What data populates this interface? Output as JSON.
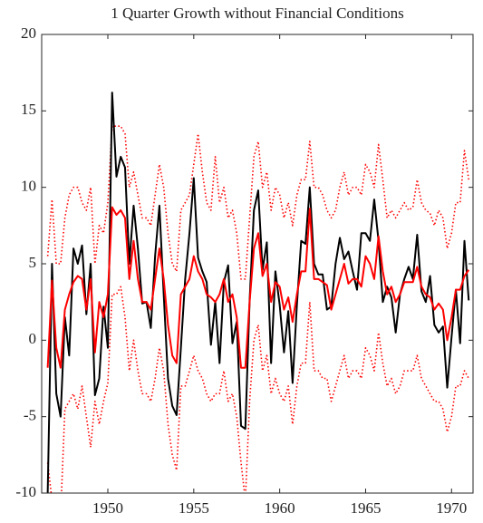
{
  "chart_data": {
    "type": "line",
    "title": "1 Quarter Growth without Financial Conditions",
    "x": [
      1946.5,
      1946.75,
      1947,
      1947.25,
      1947.5,
      1947.75,
      1948,
      1948.25,
      1948.5,
      1948.75,
      1949,
      1949.25,
      1949.5,
      1949.75,
      1950,
      1950.25,
      1950.5,
      1950.75,
      1951,
      1951.25,
      1951.5,
      1951.75,
      1952,
      1952.25,
      1952.5,
      1952.75,
      1953,
      1953.25,
      1953.5,
      1953.75,
      1954,
      1954.25,
      1954.5,
      1954.75,
      1955,
      1955.25,
      1955.5,
      1955.75,
      1956,
      1956.25,
      1956.5,
      1956.75,
      1957,
      1957.25,
      1957.5,
      1957.75,
      1958,
      1958.25,
      1958.5,
      1958.75,
      1959,
      1959.25,
      1959.5,
      1959.75,
      1960,
      1960.25,
      1960.5,
      1960.75,
      1961,
      1961.25,
      1961.5,
      1961.75,
      1962,
      1962.25,
      1962.5,
      1962.75,
      1963,
      1963.25,
      1963.5,
      1963.75,
      1964,
      1964.25,
      1964.5,
      1964.75,
      1965,
      1965.25,
      1965.5,
      1965.75,
      1966,
      1966.25,
      1966.5,
      1966.75,
      1967,
      1967.25,
      1967.5,
      1967.75,
      1968,
      1968.25,
      1968.5,
      1968.75,
      1969,
      1969.25,
      1969.5,
      1969.75,
      1970,
      1970.25,
      1970.5,
      1970.75,
      1971
    ],
    "series": [
      {
        "color": "#ff0000",
        "style": "dotted",
        "values": [
          5.5,
          9.2,
          5,
          5,
          8,
          9.5,
          10,
          10,
          9,
          8.5,
          10,
          5,
          7.5,
          7,
          9,
          14,
          14,
          14,
          13.5,
          10,
          11,
          9.5,
          8,
          8,
          7.5,
          9.5,
          11.5,
          10,
          7,
          5,
          4.5,
          8.5,
          9,
          9.5,
          11.5,
          13.5,
          11,
          9,
          8.5,
          12,
          9,
          10,
          8,
          8.5,
          7,
          4,
          4,
          8,
          12,
          13,
          10,
          11,
          8.5,
          10,
          9.5,
          8,
          9,
          7.5,
          9.5,
          10.5,
          10.5,
          13,
          10,
          10,
          9.5,
          8.5,
          8,
          8.5,
          10,
          11,
          9.5,
          10,
          10,
          9.5,
          11.5,
          11,
          10,
          12.8,
          10.5,
          8,
          8.5,
          8,
          8.5,
          9,
          8.5,
          8.7,
          10.5,
          9,
          8.5,
          8.3,
          7.5,
          8.5,
          8,
          6,
          7,
          9,
          9,
          12.4,
          10.5
        ]
      },
      {
        "color": "#ff0000",
        "style": "dotted",
        "values": [
          -8,
          -10.5,
          -10.5,
          -11.5,
          -4.5,
          -4,
          -3.5,
          -4.5,
          -3,
          -5,
          -7,
          -4,
          -5.5,
          -4,
          -2.8,
          3,
          3,
          3.5,
          1.5,
          -2,
          0,
          -2,
          -3.5,
          -3.5,
          -4,
          -2.5,
          -0.5,
          -2,
          -5.5,
          -7.5,
          -8.5,
          -3,
          -3,
          -2,
          -1,
          -2,
          -2.5,
          -3.5,
          -4,
          -3.5,
          -3.5,
          -2,
          -4,
          -3.5,
          -5,
          -8,
          -10.5,
          -4,
          0,
          1,
          -2,
          -1,
          -3.5,
          -2.5,
          -3.5,
          -4,
          -3,
          -5.5,
          -3,
          -1.5,
          -1.5,
          2.5,
          -2,
          -2,
          -2.5,
          -2.5,
          -4,
          -3,
          -2,
          -1,
          -2.5,
          -2,
          -2,
          -2.5,
          -0.5,
          -1,
          -2,
          0.5,
          -1.5,
          -3,
          -2.5,
          -3.5,
          -3,
          -2,
          -2,
          -2,
          -1,
          -2.5,
          -3,
          -3.5,
          -4,
          -4,
          -4.5,
          -6,
          -5,
          -3,
          -3,
          -2,
          -2.5
        ]
      },
      {
        "color": "#000000",
        "style": "solid",
        "values": [
          -10,
          5,
          -3.5,
          -5,
          1.5,
          -1,
          6,
          5,
          6.2,
          1.7,
          5,
          -3.6,
          -2.5,
          2.2,
          -0.5,
          16.2,
          10.7,
          12,
          11.3,
          5,
          8.8,
          6,
          2.4,
          2.5,
          0.8,
          5.5,
          8.8,
          3,
          -2.5,
          -4.3,
          -4.9,
          -0.5,
          4,
          7,
          10.6,
          5.4,
          4.5,
          3.8,
          -0.3,
          2.5,
          -1.5,
          3.8,
          4.9,
          -0.2,
          1.2,
          -5.6,
          -5.8,
          2.6,
          8.5,
          9.8,
          4.6,
          6.4,
          -1.5,
          4.5,
          2.3,
          -0.8,
          1.9,
          -2.8,
          2.3,
          6.5,
          6.3,
          10,
          5,
          4.3,
          4.3,
          2,
          2.2,
          5,
          6.7,
          5.3,
          5.8,
          4.5,
          3.3,
          7,
          7,
          6.5,
          9.2,
          6.5,
          2.5,
          3.5,
          2.8,
          0.5,
          3,
          4,
          4.8,
          4,
          6.9,
          3.2,
          2.5,
          4.2,
          1,
          0.5,
          0.9,
          -3.1,
          0.2,
          3.3,
          -0.2,
          6.5,
          2.6
        ]
      },
      {
        "color": "#ff0000",
        "style": "solid",
        "values": [
          -1.8,
          3.9,
          -0.5,
          -1.8,
          2,
          3,
          3.8,
          4.2,
          4,
          2,
          4,
          -0.8,
          2.5,
          1.5,
          3,
          8.7,
          8.2,
          8.5,
          8,
          4,
          6.5,
          4,
          2.5,
          2.5,
          2,
          4,
          6,
          4,
          1,
          -1,
          -1.5,
          3,
          3.5,
          4,
          5.5,
          4.5,
          4,
          3,
          2.8,
          2.5,
          3,
          4,
          2.5,
          3,
          1.5,
          -1.8,
          -1.8,
          2.5,
          6,
          7,
          4.2,
          5,
          2.5,
          3.8,
          3.5,
          2,
          2.8,
          1.2,
          3,
          4.5,
          4.5,
          8.6,
          4,
          4,
          3.8,
          3.6,
          2,
          3,
          4,
          5,
          3.7,
          4,
          4,
          3.5,
          5.5,
          5,
          4,
          6.8,
          4.5,
          3,
          3.5,
          2.5,
          3,
          3.8,
          3.8,
          3.8,
          4.8,
          3.5,
          3,
          2.8,
          2,
          2.4,
          2,
          0,
          1.5,
          3.3,
          3.3,
          4.2,
          4.6
        ]
      }
    ],
    "xlim": [
      1946.15,
      1971.25
    ],
    "xticks": [
      1950,
      1955,
      1960,
      1965,
      1970
    ],
    "ylim": [
      -10,
      20
    ],
    "yticks": [
      -10,
      -5,
      0,
      5,
      10,
      15,
      20
    ],
    "grid": false
  }
}
